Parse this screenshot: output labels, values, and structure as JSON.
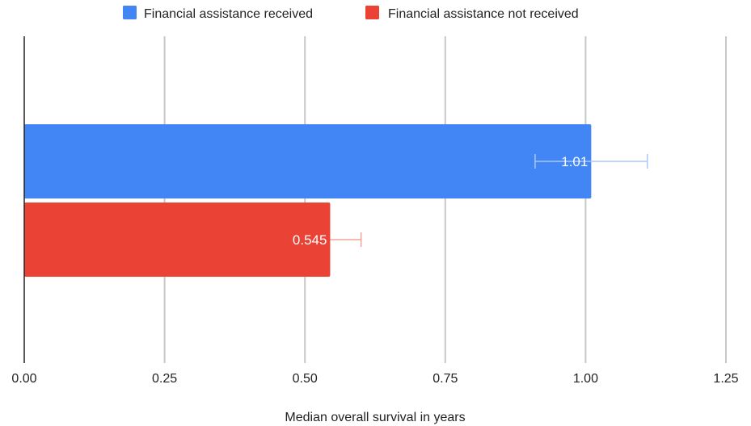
{
  "chart_data": {
    "type": "bar",
    "orientation": "horizontal",
    "title": "",
    "xlabel": "Median overall survival in years",
    "ylabel": "",
    "xlim": [
      0,
      1.25
    ],
    "x_ticks": [
      0,
      0.25,
      0.5,
      0.75,
      1.0,
      1.25
    ],
    "x_tick_labels": [
      "0.00",
      "0.25",
      "0.50",
      "0.75",
      "1.00",
      "1.25"
    ],
    "grid": "vertical",
    "legend_position": "top",
    "series": [
      {
        "name": "Financial assistance received",
        "color": "#4285F4",
        "value": 1.01,
        "value_label": "1.01",
        "error_bar": [
          0.91,
          1.11
        ],
        "error_color": "#A8C7FA"
      },
      {
        "name": "Financial assistance not received",
        "color": "#EA4335",
        "value": 0.545,
        "value_label": "0.545",
        "error_bar": [
          0.545,
          0.6
        ],
        "error_color": "#F4A39A"
      }
    ]
  }
}
